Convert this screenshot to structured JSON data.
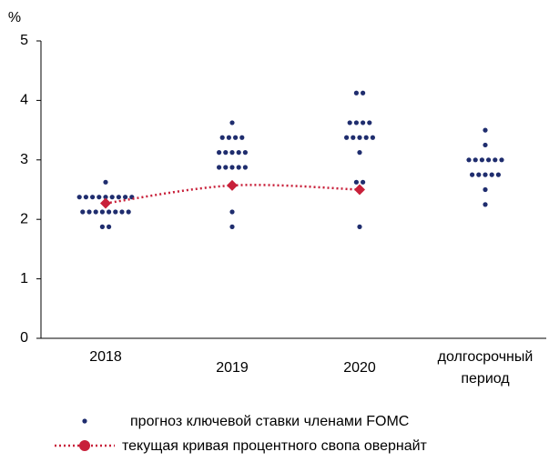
{
  "chart_data": {
    "type": "dot",
    "y_label": "%",
    "ylim": [
      0,
      5
    ],
    "yticks": [
      0,
      1,
      2,
      3,
      4,
      5
    ],
    "categories": [
      "2018",
      "2019",
      "2020",
      "долгосрочный период"
    ],
    "series": [
      {
        "name": "прогноз ключевой ставки членами FOMC",
        "color": "#1f2d6e",
        "values": [
          [
            2.625,
            2.375,
            2.375,
            2.375,
            2.375,
            2.375,
            2.375,
            2.375,
            2.375,
            2.375,
            2.125,
            2.125,
            2.125,
            2.125,
            2.125,
            2.125,
            2.125,
            2.125,
            1.875,
            1.875
          ],
          [
            3.625,
            3.375,
            3.375,
            3.375,
            3.375,
            3.125,
            3.125,
            3.125,
            3.125,
            3.125,
            2.875,
            2.875,
            2.875,
            2.875,
            2.875,
            2.125,
            1.875
          ],
          [
            4.125,
            4.125,
            3.625,
            3.625,
            3.625,
            3.625,
            3.375,
            3.375,
            3.375,
            3.375,
            3.375,
            3.125,
            2.625,
            2.625,
            1.875
          ],
          [
            3.5,
            3.25,
            3.0,
            3.0,
            3.0,
            3.0,
            3.0,
            3.0,
            2.75,
            2.75,
            2.75,
            2.75,
            2.75,
            2.5,
            2.25
          ]
        ]
      },
      {
        "name": "текущая кривая процентного свопа овернайт",
        "color": "#c8203a",
        "values": [
          2.27,
          2.57,
          2.5,
          null
        ]
      }
    ]
  }
}
